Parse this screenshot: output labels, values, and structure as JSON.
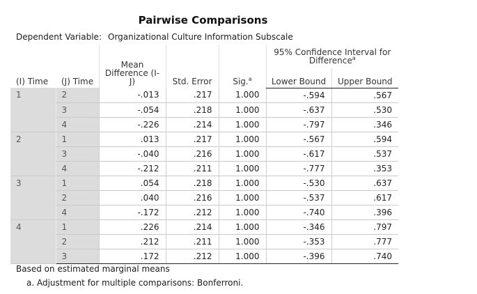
{
  "title": "Pairwise Comparisons",
  "dependent_variable": {
    "label": "Dependent Variable:",
    "value": "Organizational Culture Information Subscale"
  },
  "headers": {
    "i_time": "(I) Time",
    "j_time": "(J) Time",
    "mean_diff": [
      "Mean",
      "Difference (I-",
      "J)"
    ],
    "std_error": "Std. Error",
    "sig": "Sig.",
    "sig_sup": "a",
    "ci_line1": "95% Confidence Interval for",
    "ci_line2": "Difference",
    "ci_sup": "a",
    "lower": "Lower Bound",
    "upper": "Upper Bound"
  },
  "groups": [
    {
      "i": "1",
      "rows": [
        {
          "j": "2",
          "md": "-.013",
          "se": ".217",
          "sig": "1.000",
          "lb": "-.594",
          "ub": ".567"
        },
        {
          "j": "3",
          "md": "-.054",
          "se": ".218",
          "sig": "1.000",
          "lb": "-.637",
          "ub": ".530"
        },
        {
          "j": "4",
          "md": "-.226",
          "se": ".214",
          "sig": "1.000",
          "lb": "-.797",
          "ub": ".346"
        }
      ]
    },
    {
      "i": "2",
      "rows": [
        {
          "j": "1",
          "md": ".013",
          "se": ".217",
          "sig": "1.000",
          "lb": "-.567",
          "ub": ".594"
        },
        {
          "j": "3",
          "md": "-.040",
          "se": ".216",
          "sig": "1.000",
          "lb": "-.617",
          "ub": ".537"
        },
        {
          "j": "4",
          "md": "-.212",
          "se": ".211",
          "sig": "1.000",
          "lb": "-.777",
          "ub": ".353"
        }
      ]
    },
    {
      "i": "3",
      "rows": [
        {
          "j": "1",
          "md": ".054",
          "se": ".218",
          "sig": "1.000",
          "lb": "-.530",
          "ub": ".637"
        },
        {
          "j": "2",
          "md": ".040",
          "se": ".216",
          "sig": "1.000",
          "lb": "-.537",
          "ub": ".617"
        },
        {
          "j": "4",
          "md": "-.172",
          "se": ".212",
          "sig": "1.000",
          "lb": "-.740",
          "ub": ".396"
        }
      ]
    },
    {
      "i": "4",
      "rows": [
        {
          "j": "1",
          "md": ".226",
          "se": ".214",
          "sig": "1.000",
          "lb": "-.346",
          "ub": ".797"
        },
        {
          "j": "2",
          "md": ".212",
          "se": ".211",
          "sig": "1.000",
          "lb": "-.353",
          "ub": ".777"
        },
        {
          "j": "3",
          "md": ".172",
          "se": ".212",
          "sig": "1.000",
          "lb": "-.396",
          "ub": ".740"
        }
      ]
    }
  ],
  "footnotes": {
    "based_on": "Based on estimated marginal means",
    "note_a": "a. Adjustment for multiple comparisons: Bonferroni."
  }
}
